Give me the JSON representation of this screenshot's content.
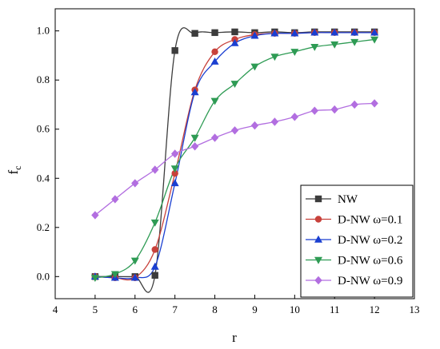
{
  "chart_data": {
    "type": "line",
    "title": "",
    "xlabel": "r",
    "ylabel": "f",
    "ylabel_subscript": "c",
    "xlim": [
      4,
      13
    ],
    "ylim": [
      -0.09,
      1.09
    ],
    "xticks": [
      4,
      5,
      6,
      7,
      8,
      9,
      10,
      11,
      12,
      13
    ],
    "xtick_labels": [
      "4",
      "5",
      "6",
      "7",
      "8",
      "9",
      "10",
      "11",
      "12",
      "13"
    ],
    "yticks": [
      0.0,
      0.2,
      0.4,
      0.6,
      0.8,
      1.0
    ],
    "ytick_labels": [
      "0.0",
      "0.2",
      "0.4",
      "0.6",
      "0.8",
      "1.0"
    ],
    "grid": false,
    "legend_position": "bottom-right",
    "x": [
      5,
      5.5,
      6,
      6.5,
      7,
      7.5,
      8,
      8.5,
      9,
      9.5,
      10,
      10.5,
      11,
      11.5,
      12
    ],
    "series": [
      {
        "name": "NW",
        "marker": "square",
        "color": "#3c3c3c",
        "values": [
          0.0,
          0.0,
          0.0,
          0.005,
          0.92,
          0.99,
          0.993,
          0.996,
          0.993,
          0.996,
          0.993,
          0.996,
          0.996,
          0.996,
          0.996
        ]
      },
      {
        "name": "D-NW ω=0.1",
        "marker": "circle",
        "color": "#c8413b",
        "values": [
          0.0,
          -0.005,
          -0.005,
          0.11,
          0.42,
          0.76,
          0.915,
          0.965,
          0.985,
          0.99,
          0.99,
          0.993,
          0.993,
          0.993,
          0.993
        ]
      },
      {
        "name": "D-NW ω=0.2",
        "marker": "triangle-up",
        "color": "#1a3fd1",
        "values": [
          0.0,
          -0.005,
          -0.005,
          0.04,
          0.38,
          0.75,
          0.875,
          0.95,
          0.98,
          0.99,
          0.99,
          0.993,
          0.993,
          0.993,
          0.993
        ]
      },
      {
        "name": "D-NW ω=0.6",
        "marker": "triangle-down",
        "color": "#2e9b54",
        "values": [
          -0.005,
          0.01,
          0.065,
          0.22,
          0.44,
          0.565,
          0.715,
          0.785,
          0.855,
          0.895,
          0.915,
          0.935,
          0.945,
          0.955,
          0.965
        ]
      },
      {
        "name": "D-NW ω=0.9",
        "marker": "diamond",
        "color": "#b26ee0",
        "values": [
          0.25,
          0.315,
          0.38,
          0.435,
          0.5,
          0.53,
          0.565,
          0.595,
          0.615,
          0.63,
          0.65,
          0.675,
          0.68,
          0.7,
          0.705
        ]
      }
    ]
  }
}
